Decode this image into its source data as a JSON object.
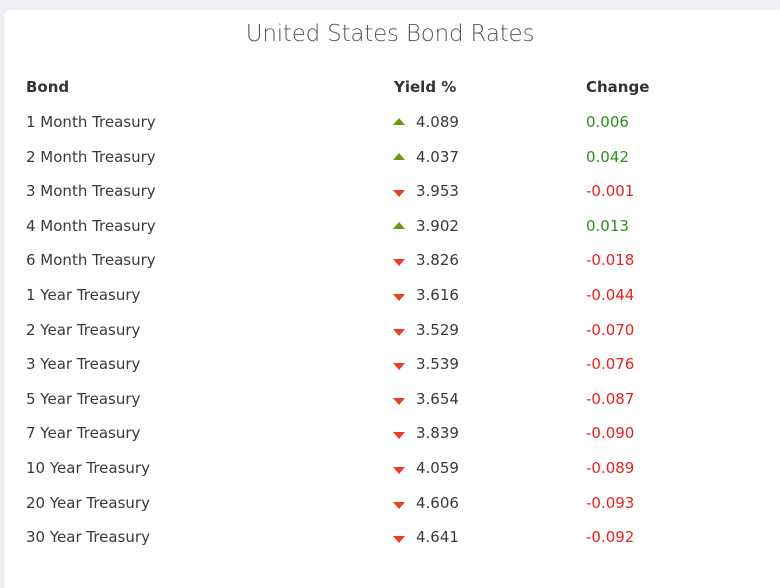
{
  "title": "United States Bond Rates",
  "headers": {
    "bond": "Bond",
    "yield": "Yield %",
    "change": "Change"
  },
  "colors": {
    "up": "#6a9a0a",
    "down": "#e8401c",
    "positive": "#2f8f1f",
    "negative": "#e8221c"
  },
  "rows": [
    {
      "bond": "1 Month Treasury",
      "direction": "up",
      "yield": "4.089",
      "change": "0.006"
    },
    {
      "bond": "2 Month Treasury",
      "direction": "up",
      "yield": "4.037",
      "change": "0.042"
    },
    {
      "bond": "3 Month Treasury",
      "direction": "down",
      "yield": "3.953",
      "change": "-0.001"
    },
    {
      "bond": "4 Month Treasury",
      "direction": "up",
      "yield": "3.902",
      "change": "0.013"
    },
    {
      "bond": "6 Month Treasury",
      "direction": "down",
      "yield": "3.826",
      "change": "-0.018"
    },
    {
      "bond": "1 Year Treasury",
      "direction": "down",
      "yield": "3.616",
      "change": "-0.044"
    },
    {
      "bond": "2 Year Treasury",
      "direction": "down",
      "yield": "3.529",
      "change": "-0.070"
    },
    {
      "bond": "3 Year Treasury",
      "direction": "down",
      "yield": "3.539",
      "change": "-0.076"
    },
    {
      "bond": "5 Year Treasury",
      "direction": "down",
      "yield": "3.654",
      "change": "-0.087"
    },
    {
      "bond": "7 Year Treasury",
      "direction": "down",
      "yield": "3.839",
      "change": "-0.090"
    },
    {
      "bond": "10 Year Treasury",
      "direction": "down",
      "yield": "4.059",
      "change": "-0.089"
    },
    {
      "bond": "20 Year Treasury",
      "direction": "down",
      "yield": "4.606",
      "change": "-0.093"
    },
    {
      "bond": "30 Year Treasury",
      "direction": "down",
      "yield": "4.641",
      "change": "-0.092"
    }
  ]
}
